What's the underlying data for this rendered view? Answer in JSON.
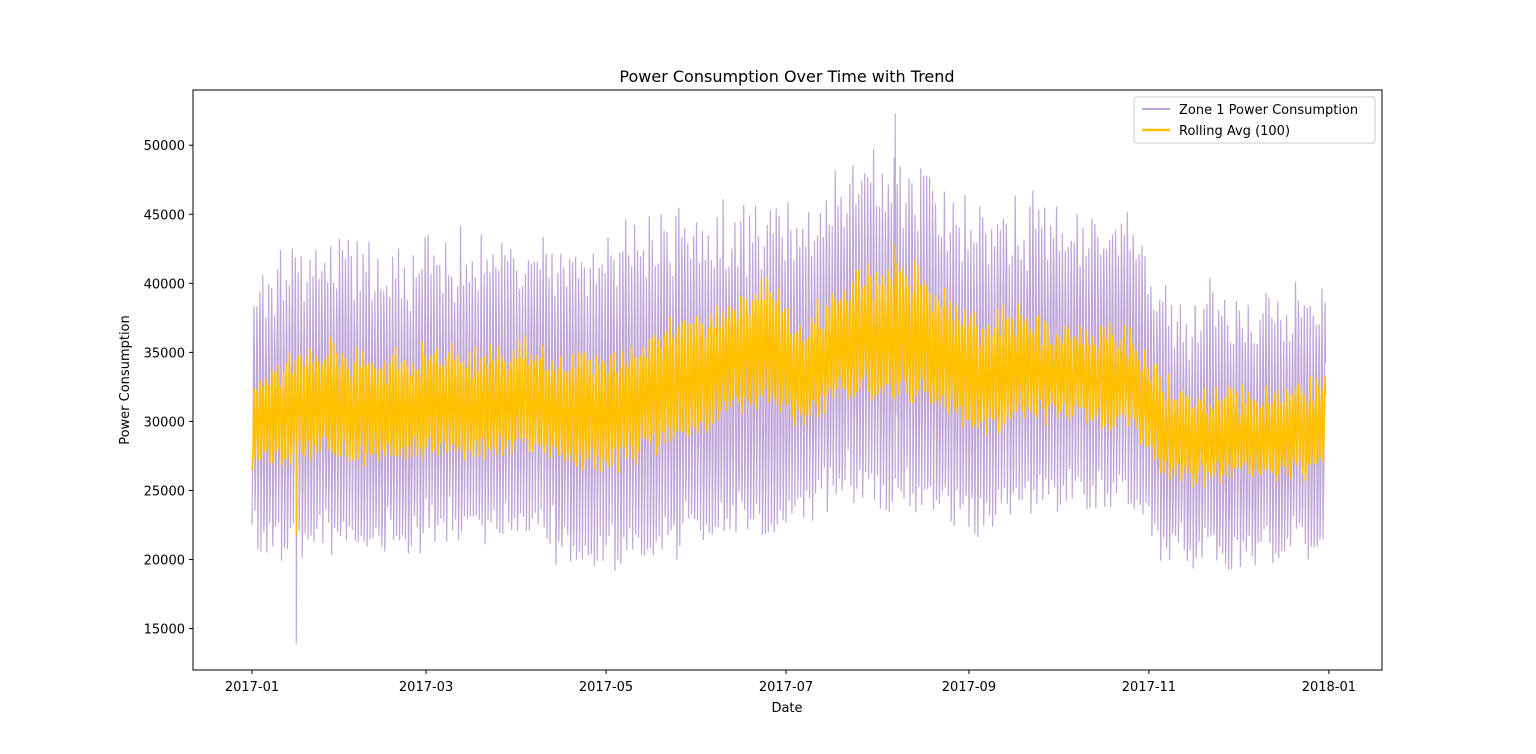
{
  "chart_data": {
    "type": "line",
    "title": "Power Consumption Over Time with Trend",
    "xlabel": "Date",
    "ylabel": "Power Consumption",
    "xlim": [
      "2016-12-12",
      "2018-01-19"
    ],
    "ylim": [
      12000,
      54000
    ],
    "x_ticks": [
      "2017-01",
      "2017-03",
      "2017-05",
      "2017-07",
      "2017-09",
      "2017-11",
      "2018-01"
    ],
    "y_ticks": [
      15000,
      20000,
      25000,
      30000,
      35000,
      40000,
      45000,
      50000
    ],
    "grid": false,
    "legend": {
      "position": "top-right",
      "entries": [
        "Zone 1 Power Consumption",
        "Rolling Avg (100)"
      ]
    },
    "colors": {
      "zone1": "#c0a6d8",
      "rolling": "#ffc000",
      "axes": "#000000",
      "background": "#ffffff"
    },
    "series": [
      {
        "name": "Zone 1 Power Consumption",
        "style": "thin-line",
        "x": [
          "2017-01-05",
          "2017-01-15",
          "2017-01-25",
          "2017-02-05",
          "2017-02-15",
          "2017-02-25",
          "2017-03-05",
          "2017-03-15",
          "2017-03-25",
          "2017-04-05",
          "2017-04-15",
          "2017-04-25",
          "2017-05-05",
          "2017-05-15",
          "2017-05-25",
          "2017-06-05",
          "2017-06-15",
          "2017-06-25",
          "2017-07-05",
          "2017-07-15",
          "2017-07-25",
          "2017-08-05",
          "2017-08-15",
          "2017-08-25",
          "2017-09-05",
          "2017-09-15",
          "2017-09-25",
          "2017-10-05",
          "2017-10-15",
          "2017-10-25",
          "2017-11-05",
          "2017-11-15",
          "2017-11-25",
          "2017-12-05",
          "2017-12-15",
          "2017-12-25"
        ],
        "daily_max": [
          42500,
          43500,
          44500,
          44000,
          43500,
          44000,
          44000,
          44500,
          44500,
          44500,
          44000,
          45000,
          45500,
          46500,
          47000,
          47000,
          46500,
          47000,
          46500,
          48500,
          50000,
          50500,
          50000,
          47500,
          46500,
          47000,
          47000,
          46500,
          46500,
          46000,
          40500,
          39500,
          40500,
          40000,
          40500,
          40500
        ],
        "daily_min": [
          21000,
          21500,
          22000,
          21500,
          21500,
          21500,
          22000,
          22000,
          22500,
          22500,
          21000,
          20500,
          20500,
          21000,
          21500,
          22000,
          22500,
          23000,
          23500,
          24500,
          25500,
          25000,
          24500,
          24000,
          23000,
          24500,
          24500,
          24500,
          25000,
          25000,
          21000,
          20000,
          20500,
          20500,
          21000,
          21000
        ],
        "min": 13900,
        "max": 52300
      },
      {
        "name": "Rolling Avg (100)",
        "style": "thick-line",
        "x": [
          "2017-01-05",
          "2017-01-15",
          "2017-01-25",
          "2017-02-05",
          "2017-02-15",
          "2017-02-25",
          "2017-03-05",
          "2017-03-15",
          "2017-03-25",
          "2017-04-05",
          "2017-04-15",
          "2017-04-25",
          "2017-05-05",
          "2017-05-15",
          "2017-05-25",
          "2017-06-05",
          "2017-06-15",
          "2017-06-25",
          "2017-07-05",
          "2017-07-15",
          "2017-07-25",
          "2017-08-05",
          "2017-08-15",
          "2017-08-25",
          "2017-09-05",
          "2017-09-15",
          "2017-09-25",
          "2017-10-05",
          "2017-10-15",
          "2017-10-25",
          "2017-11-05",
          "2017-11-15",
          "2017-11-25",
          "2017-12-05",
          "2017-12-15",
          "2017-12-25"
        ],
        "daily_max": [
          34000,
          35500,
          36000,
          35500,
          35000,
          35500,
          36000,
          35500,
          36000,
          36000,
          35000,
          35500,
          35000,
          36500,
          38000,
          38500,
          39500,
          40500,
          37000,
          39500,
          41500,
          42000,
          41500,
          39500,
          37500,
          38500,
          37500,
          37500,
          37000,
          36500,
          33500,
          32500,
          33000,
          32500,
          33000,
          33500
        ],
        "daily_min": [
          27000,
          27500,
          28000,
          27500,
          27500,
          28000,
          28000,
          27500,
          28000,
          28000,
          27500,
          27000,
          27000,
          28000,
          29000,
          30000,
          31000,
          31500,
          30000,
          31500,
          32500,
          32000,
          32000,
          31000,
          29500,
          30000,
          30500,
          30500,
          30000,
          30000,
          26500,
          26000,
          26000,
          26500,
          26000,
          26500
        ],
        "min": 21800,
        "max": 42800
      }
    ]
  }
}
